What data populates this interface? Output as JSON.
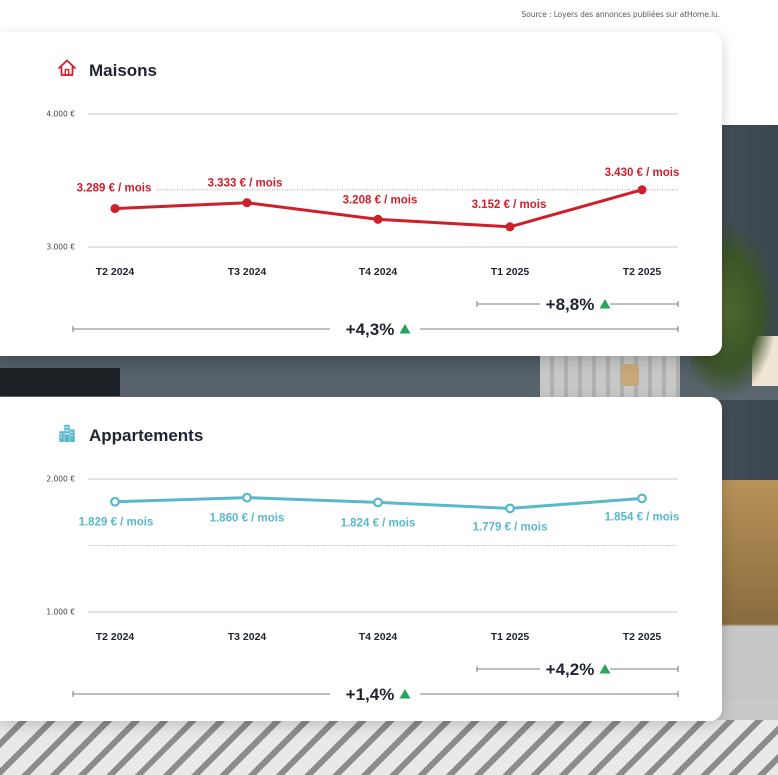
{
  "source": "Source : Loyers des annonces publiées sur atHome.lu.",
  "colors": {
    "maisons": "#cf1f2b",
    "appartements": "#5ab8cc",
    "up": "#27a55a"
  },
  "chart_data": [
    {
      "type": "line",
      "title": "Maisons",
      "icon": "house-icon",
      "categories": [
        "T2 2024",
        "T3 2024",
        "T4 2024",
        "T1 2025",
        "T2 2025"
      ],
      "values": [
        3289,
        3333,
        3208,
        3152,
        3430
      ],
      "value_labels": [
        "3.289 € / mois",
        "3.333 € / mois",
        "3.208 € / mois",
        "3.152 € / mois",
        "3.430 € / mois"
      ],
      "ylim": [
        3000,
        4000
      ],
      "yticks": [
        "3.000 €",
        "4.000 €"
      ],
      "reference_line": 3430,
      "grid": true,
      "changes": [
        {
          "label": "+8,8%",
          "from": "T1 2025",
          "to": "T2 2025"
        },
        {
          "label": "+4,3%",
          "from": "T2 2024",
          "to": "T2 2025"
        }
      ]
    },
    {
      "type": "line",
      "title": "Appartements",
      "icon": "building-icon",
      "categories": [
        "T2 2024",
        "T3 2024",
        "T4 2024",
        "T1 2025",
        "T2 2025"
      ],
      "values": [
        1829,
        1860,
        1824,
        1779,
        1854
      ],
      "value_labels": [
        "1.829 € / mois",
        "1.860 € / mois",
        "1.824 € / mois",
        "1.779 € / mois",
        "1.854 € / mois"
      ],
      "ylim": [
        1000,
        2000
      ],
      "yticks": [
        "1.000 €",
        "2.000 €"
      ],
      "reference_line": 1500,
      "grid": true,
      "changes": [
        {
          "label": "+4,2%",
          "from": "T1 2025",
          "to": "T2 2025"
        },
        {
          "label": "+1,4%",
          "from": "T2 2024",
          "to": "T2 2025"
        }
      ]
    }
  ]
}
